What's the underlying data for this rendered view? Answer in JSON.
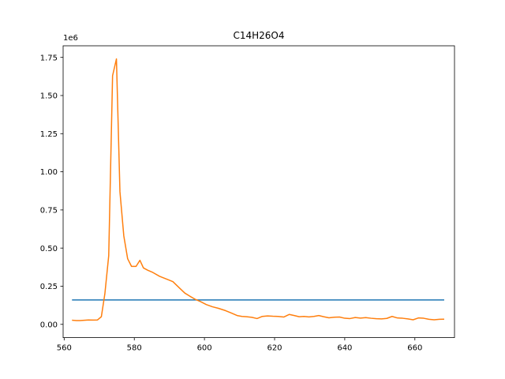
{
  "chart_data": {
    "type": "line",
    "title": "C14H26O4",
    "xlabel": "",
    "ylabel": "",
    "y_offset_label": "1e6",
    "xlim": [
      559.7,
      671.3
    ],
    "ylim": [
      -0.087,
      1.826
    ],
    "grid": false,
    "x_ticks": [
      560,
      580,
      600,
      620,
      640,
      660
    ],
    "x_tick_labels": [
      "560",
      "580",
      "600",
      "620",
      "640",
      "660"
    ],
    "y_ticks": [
      0.0,
      0.25,
      0.5,
      0.75,
      1.0,
      1.25,
      1.5,
      1.75
    ],
    "y_tick_labels": [
      "0.00",
      "0.25",
      "0.50",
      "0.75",
      "1.00",
      "1.25",
      "1.50",
      "1.75"
    ],
    "series": [
      {
        "color": "#1f77b4",
        "x": [
          562.4,
          668.2
        ],
        "y": [
          0.16,
          0.16
        ]
      },
      {
        "color": "#ff7f0e",
        "x": [
          562.4,
          563.5,
          564.5,
          565.7,
          566.9,
          568.3,
          569.5,
          570.6,
          571.6,
          572.7,
          573.8,
          574.9,
          575.9,
          577.0,
          578.1,
          579.2,
          580.5,
          581.6,
          582.6,
          583.8,
          585.3,
          587.2,
          589.4,
          591.0,
          592.8,
          594.4,
          595.8,
          597.3,
          598.8,
          600.5,
          602.3,
          604.0,
          606.0,
          607.6,
          609.3,
          610.7,
          612.0,
          613.5,
          615.0,
          616.5,
          618.0,
          619.5,
          621.0,
          622.6,
          624.2,
          625.6,
          627.0,
          628.4,
          629.8,
          631.2,
          632.6,
          634.0,
          635.5,
          637.0,
          638.5,
          640.0,
          641.5,
          643.0,
          644.5,
          646.0,
          647.5,
          649.0,
          650.5,
          652.0,
          653.5,
          655.0,
          656.5,
          658.0,
          659.5,
          661.0,
          662.5,
          664.0,
          665.5,
          667.0,
          668.2
        ],
        "y": [
          0.027,
          0.025,
          0.025,
          0.027,
          0.029,
          0.028,
          0.029,
          0.05,
          0.2,
          0.45,
          1.63,
          1.74,
          0.87,
          0.58,
          0.43,
          0.38,
          0.38,
          0.42,
          0.37,
          0.355,
          0.34,
          0.315,
          0.295,
          0.28,
          0.24,
          0.205,
          0.185,
          0.165,
          0.15,
          0.13,
          0.115,
          0.105,
          0.09,
          0.075,
          0.058,
          0.052,
          0.05,
          0.046,
          0.038,
          0.052,
          0.055,
          0.053,
          0.052,
          0.048,
          0.065,
          0.058,
          0.05,
          0.052,
          0.049,
          0.052,
          0.058,
          0.05,
          0.043,
          0.047,
          0.048,
          0.04,
          0.038,
          0.045,
          0.041,
          0.044,
          0.04,
          0.037,
          0.036,
          0.039,
          0.052,
          0.042,
          0.04,
          0.036,
          0.03,
          0.042,
          0.04,
          0.033,
          0.03,
          0.033,
          0.034
        ]
      }
    ]
  }
}
